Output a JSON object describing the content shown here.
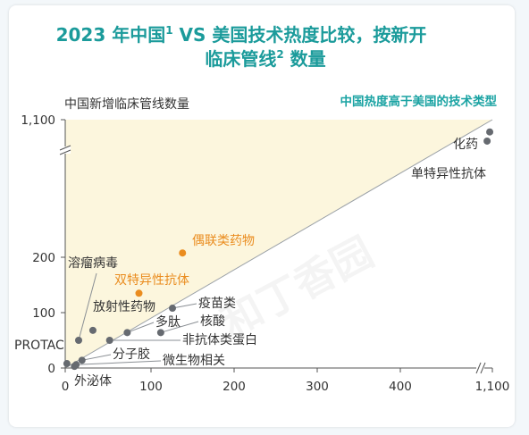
{
  "chart_data": {
    "type": "scatter",
    "title_line1": "2023 年中国",
    "title_sup1": "1",
    "title_line1b": " VS 美国技术热度比较，按新开",
    "title_line2": "临床管线",
    "title_sup2": "2",
    "title_line2b": " 数量",
    "ylabel": "中国新增临床管线数量",
    "region_label": "中国热度高于美国的技术类型",
    "watermark": "和丁香园",
    "x_ticks": [
      "0",
      "100",
      "200",
      "300",
      "400",
      "1,100"
    ],
    "y_ticks": [
      "0",
      "100",
      "200",
      "1,100"
    ],
    "points": [
      {
        "name": "化药",
        "x": 1080,
        "y": 1020,
        "color": "#666a70",
        "label_color": "#333333"
      },
      {
        "name": "单特异性抗体",
        "x": 1060,
        "y": 960,
        "color": "#666a70",
        "label_color": "#333333"
      },
      {
        "name": "偶联类药物",
        "x": 140,
        "y": 228,
        "color": "#ea8c1e",
        "label_color": "#ea8c1e"
      },
      {
        "name": "双特异性抗体",
        "x": 88,
        "y": 135,
        "color": "#ea8c1e",
        "label_color": "#ea8c1e"
      },
      {
        "name": "溶瘤病毒",
        "x": 16,
        "y": 50,
        "color": "#666a70",
        "label_color": "#333333"
      },
      {
        "name": "放射性药物",
        "x": 33,
        "y": 68,
        "color": "#666a70",
        "label_color": "#333333"
      },
      {
        "name": "疫苗类",
        "x": 128,
        "y": 108,
        "color": "#666a70",
        "label_color": "#333333"
      },
      {
        "name": "多肽",
        "x": 74,
        "y": 64,
        "color": "#666a70",
        "label_color": "#333333"
      },
      {
        "name": "核酸",
        "x": 114,
        "y": 64,
        "color": "#666a70",
        "label_color": "#333333"
      },
      {
        "name": "非抗体类蛋白",
        "x": 53,
        "y": 50,
        "color": "#666a70",
        "label_color": "#333333"
      },
      {
        "name": "分子胶",
        "x": 20,
        "y": 14,
        "color": "#666a70",
        "label_color": "#333333"
      },
      {
        "name": "PROTAC",
        "x": 2,
        "y": 8,
        "color": "#666a70",
        "label_color": "#333333"
      },
      {
        "name": "微生物相关",
        "x": 13,
        "y": 6,
        "color": "#666a70",
        "label_color": "#333333"
      },
      {
        "name": "外泌体",
        "x": 11,
        "y": 3,
        "color": "#666a70",
        "label_color": "#333333"
      }
    ]
  }
}
